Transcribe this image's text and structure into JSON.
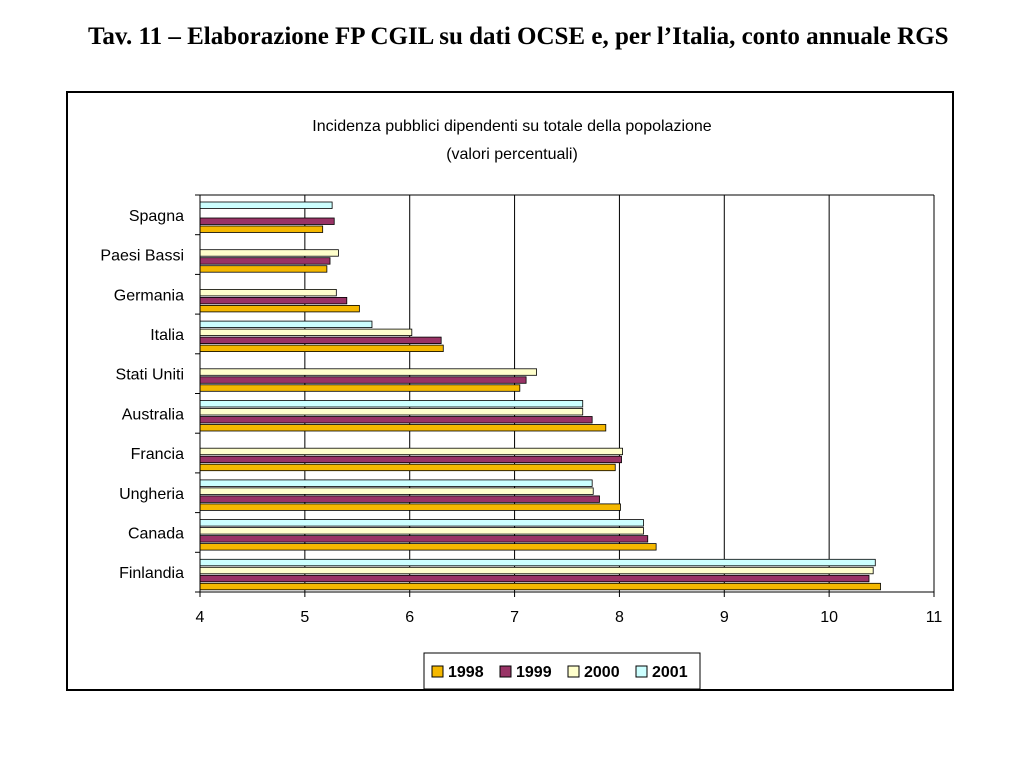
{
  "slide": {
    "title": "Tav. 11 – Elaborazione FP CGIL su dati OCSE e, per l’Italia, conto annuale RGS"
  },
  "chart_data": {
    "type": "bar",
    "orientation": "horizontal",
    "title": "Incidenza pubblici dipendenti su totale della popolazione",
    "subtitle": "(valori percentuali)",
    "categories": [
      "Spagna",
      "Paesi Bassi",
      "Germania",
      "Italia",
      "Stati Uniti",
      "Australia",
      "Francia",
      "Ungheria",
      "Canada",
      "Finlandia"
    ],
    "xlim": [
      4,
      11
    ],
    "xticks": [
      4,
      5,
      6,
      7,
      8,
      9,
      10,
      11
    ],
    "grid": true,
    "legend_position": "bottom",
    "series": [
      {
        "name": "1998",
        "color": "#f5b800",
        "values": [
          5.17,
          5.21,
          5.52,
          6.32,
          7.05,
          7.87,
          7.96,
          8.01,
          8.35,
          10.49
        ]
      },
      {
        "name": "1999",
        "color": "#993366",
        "values": [
          5.28,
          5.24,
          5.4,
          6.3,
          7.11,
          7.74,
          8.02,
          7.81,
          8.27,
          10.38
        ]
      },
      {
        "name": "2000",
        "color": "#ffffcc",
        "values": [
          null,
          5.32,
          5.3,
          6.02,
          7.21,
          7.65,
          8.03,
          7.75,
          8.23,
          10.42
        ]
      },
      {
        "name": "2001",
        "color": "#ccffff",
        "values": [
          5.26,
          null,
          null,
          5.64,
          null,
          7.65,
          null,
          7.74,
          8.23,
          10.44
        ]
      }
    ]
  }
}
